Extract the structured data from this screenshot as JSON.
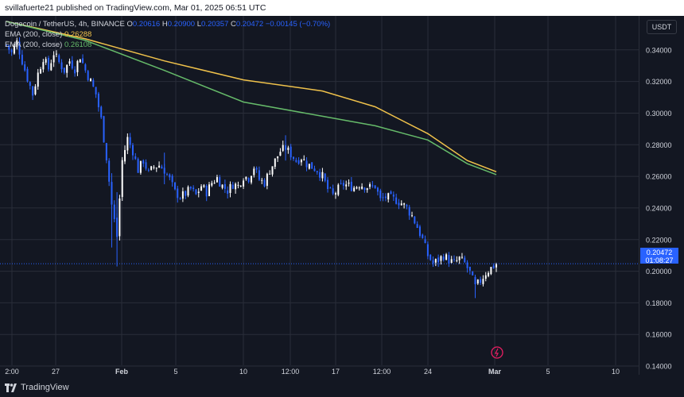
{
  "header": {
    "text": "svillafuerte21 published on TradingView.com, Mar 01, 2025 06:51 UTC"
  },
  "legend": {
    "symbol": "Dogecoin / TetherUS, 4h, BINANCE",
    "open_label": "O",
    "open": "0.20616",
    "high_label": "H",
    "high": "0.20900",
    "low_label": "L",
    "low": "0.20357",
    "close_label": "C",
    "close": "0.20472",
    "change": "−0.00145 (−0.70%)",
    "ema1_label": "EMA (200, close)",
    "ema1_value": "0.26288",
    "ema2_label": "EMA (200, close)",
    "ema2_value": "0.26108"
  },
  "scale": {
    "currency": "USDT",
    "price_tag": "0.20472",
    "countdown": "01:08:27"
  },
  "footer": {
    "brand": "TradingView"
  },
  "colors": {
    "background": "#131722",
    "grid": "#2a2e39",
    "candle": "#ffffff",
    "candle_alt": "#2962ff",
    "ema1": "#f0c24b",
    "ema2": "#66bb6a",
    "price_line": "#2962ff"
  },
  "chart_data": {
    "type": "candlestick",
    "timeframe": "4h",
    "y_ticks": [
      "0.14000",
      "0.16000",
      "0.18000",
      "0.20000",
      "0.22000",
      "0.24000",
      "0.26000",
      "0.28000",
      "0.30000",
      "0.32000",
      "0.34000"
    ],
    "ylim": [
      0.1345,
      0.3615
    ],
    "x_ticks": [
      "2:00",
      "27",
      "Feb",
      "5",
      "10",
      "12:00",
      "17",
      "12:00",
      "24",
      "Mar",
      "5",
      "10"
    ],
    "x_tick_bold": [
      "Feb",
      "Mar"
    ],
    "last_price": 0.20472,
    "series": [
      {
        "name": "Close",
        "points": [
          [
            0,
            0.343
          ],
          [
            4,
            0.338
          ],
          [
            8,
            0.345
          ],
          [
            12,
            0.333
          ],
          [
            16,
            0.322
          ],
          [
            20,
            0.312
          ],
          [
            24,
            0.325
          ],
          [
            28,
            0.335
          ],
          [
            32,
            0.328
          ],
          [
            36,
            0.338
          ],
          [
            40,
            0.332
          ],
          [
            44,
            0.327
          ],
          [
            48,
            0.333
          ],
          [
            52,
            0.328
          ],
          [
            56,
            0.336
          ],
          [
            60,
            0.327
          ],
          [
            64,
            0.32
          ],
          [
            68,
            0.312
          ],
          [
            72,
            0.296
          ],
          [
            76,
            0.272
          ],
          [
            80,
            0.242
          ],
          [
            84,
            0.222
          ],
          [
            88,
            0.27
          ],
          [
            92,
            0.284
          ],
          [
            96,
            0.276
          ],
          [
            100,
            0.264
          ],
          [
            104,
            0.27
          ],
          [
            108,
            0.262
          ],
          [
            112,
            0.266
          ],
          [
            116,
            0.267
          ],
          [
            120,
            0.264
          ],
          [
            124,
            0.258
          ],
          [
            128,
            0.25
          ],
          [
            132,
            0.247
          ],
          [
            136,
            0.249
          ],
          [
            140,
            0.252
          ],
          [
            144,
            0.248
          ],
          [
            148,
            0.254
          ],
          [
            152,
            0.25
          ],
          [
            156,
            0.256
          ],
          [
            160,
            0.259
          ],
          [
            164,
            0.254
          ],
          [
            168,
            0.251
          ],
          [
            172,
            0.255
          ],
          [
            176,
            0.254
          ],
          [
            180,
            0.26
          ],
          [
            184,
            0.259
          ],
          [
            188,
            0.266
          ],
          [
            192,
            0.258
          ],
          [
            196,
            0.256
          ],
          [
            200,
            0.264
          ],
          [
            204,
            0.27
          ],
          [
            208,
            0.276
          ],
          [
            212,
            0.278
          ],
          [
            216,
            0.274
          ],
          [
            220,
            0.27
          ],
          [
            224,
            0.272
          ],
          [
            228,
            0.268
          ],
          [
            232,
            0.266
          ],
          [
            236,
            0.264
          ],
          [
            240,
            0.26
          ],
          [
            244,
            0.252
          ],
          [
            248,
            0.248
          ],
          [
            252,
            0.252
          ],
          [
            256,
            0.255
          ],
          [
            260,
            0.254
          ],
          [
            264,
            0.253
          ],
          [
            268,
            0.255
          ],
          [
            272,
            0.254
          ],
          [
            276,
            0.253
          ],
          [
            280,
            0.254
          ],
          [
            284,
            0.245
          ],
          [
            288,
            0.247
          ],
          [
            292,
            0.246
          ],
          [
            296,
            0.245
          ],
          [
            300,
            0.243
          ],
          [
            304,
            0.24
          ],
          [
            308,
            0.235
          ],
          [
            312,
            0.228
          ],
          [
            316,
            0.22
          ],
          [
            320,
            0.21
          ],
          [
            324,
            0.205
          ],
          [
            328,
            0.207
          ],
          [
            332,
            0.21
          ],
          [
            336,
            0.207
          ],
          [
            340,
            0.205
          ],
          [
            344,
            0.208
          ],
          [
            348,
            0.205
          ],
          [
            352,
            0.199
          ],
          [
            356,
            0.19
          ],
          [
            360,
            0.194
          ],
          [
            364,
            0.199
          ],
          [
            368,
            0.202
          ],
          [
            372,
            0.2047
          ]
        ]
      },
      {
        "name": "EMA (200, close) 0.26288",
        "points": [
          [
            0,
            0.358
          ],
          [
            60,
            0.347
          ],
          [
            120,
            0.333
          ],
          [
            180,
            0.321
          ],
          [
            240,
            0.314
          ],
          [
            280,
            0.304
          ],
          [
            320,
            0.287
          ],
          [
            350,
            0.27
          ],
          [
            372,
            0.2629
          ]
        ]
      },
      {
        "name": "EMA (200, close) 0.26108",
        "points": [
          [
            0,
            0.358
          ],
          [
            60,
            0.346
          ],
          [
            120,
            0.327
          ],
          [
            180,
            0.307
          ],
          [
            240,
            0.298
          ],
          [
            280,
            0.292
          ],
          [
            320,
            0.283
          ],
          [
            350,
            0.268
          ],
          [
            372,
            0.2611
          ]
        ]
      }
    ]
  }
}
